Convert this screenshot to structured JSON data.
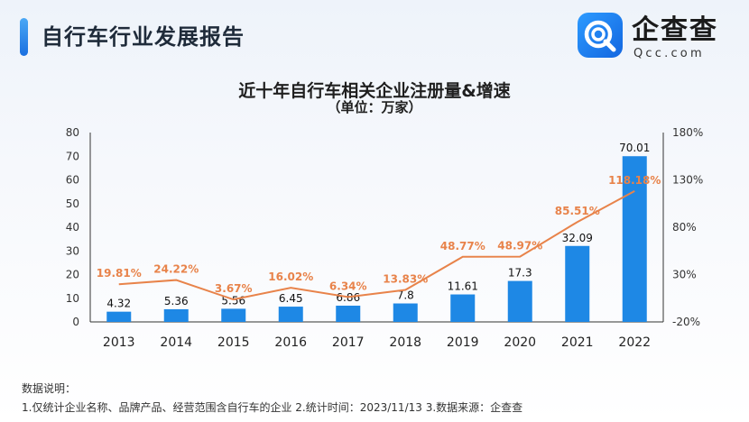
{
  "header": {
    "title": "自行车行业发展报告"
  },
  "logo": {
    "name": "企查查",
    "sub": "Qcc.com"
  },
  "chart_data": {
    "type": "bar",
    "title": "近十年自行车相关企业注册量&增速",
    "subtitle": "（单位：万家）",
    "categories": [
      "2013",
      "2014",
      "2015",
      "2016",
      "2017",
      "2018",
      "2019",
      "2020",
      "2021",
      "2022"
    ],
    "series": [
      {
        "values": [
          4.32,
          5.36,
          5.56,
          6.45,
          6.86,
          7.8,
          11.61,
          17.3,
          32.09,
          70.01
        ],
        "color": "#1e88e5",
        "axis": "left",
        "mark": "bar"
      },
      {
        "values": [
          19.81,
          24.22,
          3.67,
          16.02,
          6.34,
          13.83,
          48.77,
          48.97,
          85.51,
          118.18
        ],
        "color": "#e8834a",
        "axis": "right",
        "mark": "line"
      }
    ],
    "value_labels": [
      "4.32",
      "5.36",
      "5.56",
      "6.45",
      "6.86",
      "7.8",
      "11.61",
      "17.3",
      "32.09",
      "70.01"
    ],
    "rate_labels": [
      "19.81%",
      "24.22%",
      "3.67%",
      "16.02%",
      "6.34%",
      "13.83%",
      "48.77%",
      "48.97%",
      "85.51%",
      "118.18%"
    ],
    "ylim": [
      0,
      80
    ],
    "y_ticks": [
      "0",
      "10",
      "20",
      "30",
      "40",
      "50",
      "60",
      "70",
      "80"
    ],
    "y2lim": [
      -20,
      180
    ],
    "y2_ticks": [
      "-20%",
      "30%",
      "80%",
      "130%",
      "180%"
    ],
    "grid": false,
    "legend": "none"
  },
  "notes": {
    "title": "数据说明：",
    "body": "1.仅统计企业名称、品牌产品、经营范围含自行车的企业   2.统计时间：2023/11/13   3.数据来源：企查查"
  }
}
